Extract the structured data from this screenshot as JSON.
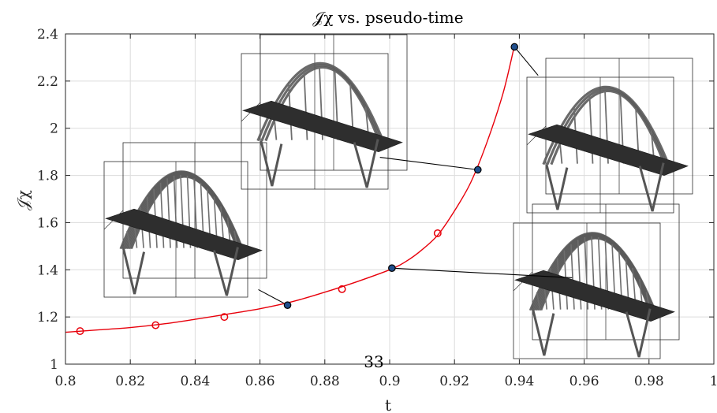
{
  "chart_data": {
    "type": "line",
    "title": "𝒥χ vs. pseudo-time",
    "xlabel": "t",
    "ylabel": "𝒥χ",
    "xlim": [
      0.8,
      1.0
    ],
    "ylim": [
      1.0,
      2.4
    ],
    "xticks": [
      0.8,
      0.82,
      0.84,
      0.86,
      0.88,
      0.9,
      0.92,
      0.94,
      0.96,
      0.98,
      1.0
    ],
    "xtick_labels": [
      "0.8",
      "0.82",
      "0.84",
      "0.86",
      "0.88",
      "0.9",
      "0.92",
      "0.94",
      "0.96",
      "0.98",
      "1"
    ],
    "yticks": [
      1.0,
      1.2,
      1.4,
      1.6,
      1.8,
      2.0,
      2.2,
      2.4
    ],
    "ytick_labels": [
      "1",
      "1.2",
      "1.4",
      "1.6",
      "1.8",
      "2",
      "2.2",
      "2.4"
    ],
    "grid": true,
    "line_color": "#e8000b",
    "highlight_color": "#1f4e8c",
    "curve": {
      "x": [
        0.8,
        0.81,
        0.82,
        0.83,
        0.84,
        0.85,
        0.86,
        0.87,
        0.88,
        0.89,
        0.9,
        0.905,
        0.91,
        0.915,
        0.92,
        0.925,
        0.93,
        0.935,
        0.9385
      ],
      "y": [
        1.135,
        1.145,
        1.155,
        1.17,
        1.19,
        1.212,
        1.235,
        1.265,
        1.305,
        1.35,
        1.4,
        1.435,
        1.485,
        1.55,
        1.65,
        1.77,
        1.94,
        2.15,
        2.35
      ]
    },
    "markers": [
      {
        "x": 0.8045,
        "y": 1.14,
        "highlight": false
      },
      {
        "x": 0.8278,
        "y": 1.165,
        "highlight": false
      },
      {
        "x": 0.849,
        "y": 1.2,
        "highlight": false
      },
      {
        "x": 0.8685,
        "y": 1.25,
        "highlight": true
      },
      {
        "x": 0.8853,
        "y": 1.318,
        "highlight": false
      },
      {
        "x": 0.9007,
        "y": 1.407,
        "highlight": true
      },
      {
        "x": 0.9148,
        "y": 1.555,
        "highlight": false
      },
      {
        "x": 0.9272,
        "y": 1.824,
        "highlight": true
      },
      {
        "x": 0.9385,
        "y": 2.345,
        "highlight": true
      }
    ],
    "callouts": [
      {
        "from": [
          0.8685,
          1.25
        ],
        "to": [
          0.8595,
          1.316
        ]
      },
      {
        "from": [
          0.9007,
          1.407
        ],
        "to": [
          0.9563,
          1.366
        ]
      },
      {
        "from": [
          0.9272,
          1.824
        ],
        "to": [
          0.897,
          1.877
        ]
      },
      {
        "from": [
          0.9385,
          2.345
        ],
        "to": [
          0.9458,
          2.224
        ]
      }
    ],
    "page_number": "33"
  }
}
